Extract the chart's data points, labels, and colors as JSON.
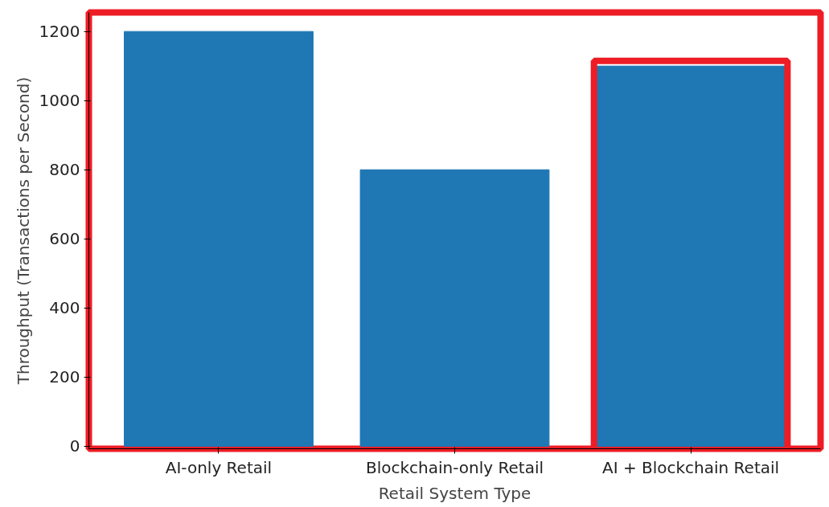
{
  "chart_data": {
    "type": "bar",
    "xlabel": "Retail System Type",
    "ylabel": "Throughput (Transactions per Second)",
    "categories": [
      "AI-only Retail",
      "Blockchain-only Retail",
      "AI + Blockchain Retail"
    ],
    "values": [
      1200,
      800,
      1100
    ],
    "color": "#1f77b4",
    "ylim": [
      -7,
      1255
    ],
    "yticks": [
      0,
      200,
      400,
      600,
      800,
      1000,
      1200
    ],
    "grid": false
  }
}
